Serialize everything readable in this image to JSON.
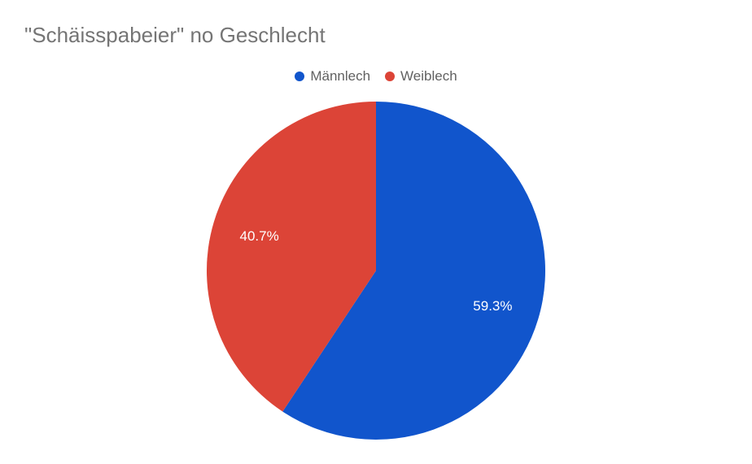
{
  "chart_data": {
    "type": "pie",
    "title": "\"Schäisspabeier\" no Geschlecht",
    "legend_position": "top",
    "categories": [
      "Männlech",
      "Weiblech"
    ],
    "values": [
      59.3,
      40.7
    ],
    "value_labels": [
      "59.3%",
      "40.7%"
    ],
    "colors": [
      "#1155cc",
      "#dc4437"
    ]
  }
}
